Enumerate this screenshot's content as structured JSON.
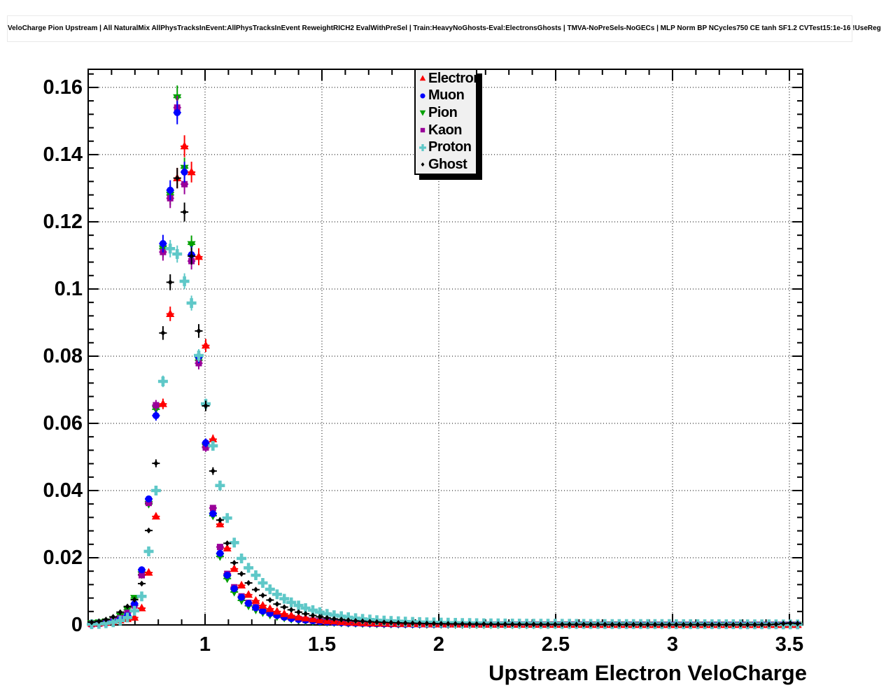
{
  "window": {
    "title_pave": "VeloCharge Pion Upstream | All NaturalMix AllPhysTracksInEvent:AllPhysTracksInEvent ReweightRICH2 EvalWithPreSel | Train:HeavyNoGhosts-Eval:ElectronsGhosts | TMVA-NoPreSels-NoGECs | MLP Norm BP NCycles750 CE tanh SF1.2 CVTest15:1e-16 !UseReg"
  },
  "legend": {
    "entries": [
      {
        "label": "Electron",
        "marker": "triangle-up",
        "color": "#ff0000"
      },
      {
        "label": "Muon",
        "marker": "circle",
        "color": "#0000ff"
      },
      {
        "label": "Pion",
        "marker": "triangle-down",
        "color": "#00a000"
      },
      {
        "label": "Kaon",
        "marker": "square",
        "color": "#990099"
      },
      {
        "label": "Proton",
        "marker": "cross",
        "color": "#5fc8c8"
      },
      {
        "label": "Ghost",
        "marker": "diamond",
        "color": "#000000"
      }
    ]
  },
  "chart_data": {
    "type": "scatter",
    "title": "VeloCharge Pion Upstream | All NaturalMix AllPhysTracksInEvent:AllPhysTracksInEvent ReweightRICH2 EvalWithPreSel | Train:HeavyNoGhosts-Eval:ElectronsGhosts | TMVA-NoPreSels-NoGECs | MLP Norm BP NCycles750 CE tanh SF1.2 CVTest15:1e-16 !UseReg",
    "xlabel": "Upstream Electron VeloCharge",
    "ylabel": "",
    "xlim": [
      0.5,
      3.557
    ],
    "ylim": [
      0,
      0.1654
    ],
    "grid": "dotted-major",
    "legend_position": "top-center",
    "x_major_ticks": [
      1,
      1.5,
      2,
      2.5,
      3,
      3.5
    ],
    "x_tick_labels": [
      "1",
      "1.5",
      "2",
      "2.5",
      "3",
      "3.5"
    ],
    "x_minor_step": 0.1,
    "y_major_ticks": [
      0,
      0.02,
      0.04,
      0.06,
      0.08,
      0.1,
      0.12,
      0.14,
      0.16
    ],
    "y_tick_labels": [
      "0",
      "0.02",
      "0.04",
      "0.06",
      "0.08",
      "0.1",
      "0.12",
      "0.14",
      "0.16"
    ],
    "y_minor_step": 0.004,
    "x": [
      0.515,
      0.546,
      0.576,
      0.607,
      0.637,
      0.668,
      0.698,
      0.729,
      0.759,
      0.79,
      0.82,
      0.851,
      0.881,
      0.912,
      0.942,
      0.973,
      1.003,
      1.034,
      1.064,
      1.095,
      1.125,
      1.156,
      1.186,
      1.217,
      1.247,
      1.278,
      1.308,
      1.339,
      1.369,
      1.4,
      1.43,
      1.461,
      1.491,
      1.522,
      1.552,
      1.583,
      1.613,
      1.644,
      1.674,
      1.705,
      1.735,
      1.766,
      1.796,
      1.827,
      1.857,
      1.888,
      1.918,
      1.949,
      1.979,
      2.01,
      2.04,
      2.071,
      2.101,
      2.132,
      2.162,
      2.193,
      2.223,
      2.254,
      2.284,
      2.315,
      2.345,
      2.376,
      2.406,
      2.437,
      2.467,
      2.498,
      2.528,
      2.559,
      2.589,
      2.62,
      2.65,
      2.681,
      2.711,
      2.742,
      2.772,
      2.803,
      2.833,
      2.864,
      2.894,
      2.925,
      2.955,
      2.986,
      3.016,
      3.047,
      3.077,
      3.108,
      3.138,
      3.169,
      3.199,
      3.23,
      3.26,
      3.291,
      3.321,
      3.352,
      3.382,
      3.413,
      3.443,
      3.474,
      3.504,
      3.535
    ],
    "series": [
      {
        "name": "Electron",
        "color": "#ff0000",
        "marker": "triangle-up",
        "values": [
          0.0004,
          0.0005,
          0.0007,
          0.001,
          0.0014,
          0.0018,
          0.0022,
          0.005,
          0.0156,
          0.0323,
          0.0658,
          0.0926,
          0.133,
          0.1425,
          0.1348,
          0.1096,
          0.0832,
          0.0553,
          0.03,
          0.0228,
          0.0167,
          0.0118,
          0.009,
          0.0072,
          0.0058,
          0.0048,
          0.004,
          0.0033,
          0.0028,
          0.0023,
          0.002,
          0.0017,
          0.0014,
          0.0012,
          0.0011,
          0.0009,
          0.0008,
          0.0007,
          0.0006,
          0.00055,
          0.0005,
          0.00045,
          0.0004,
          0.00038,
          0.00035,
          0.00032,
          0.0003,
          0.00028,
          0.00026,
          0.00024,
          0.00022,
          0.0002,
          0.0002,
          0.00019,
          0.00018,
          0.00017,
          0.00016,
          0.00015,
          0.00015,
          0.00014,
          0.00013,
          0.00013,
          0.00012,
          0.00012,
          0.00011,
          0.00011,
          0.0001,
          0.0001,
          0.0001,
          9e-05,
          9e-05,
          9e-05,
          8e-05,
          8e-05,
          8e-05,
          8e-05,
          7e-05,
          7e-05,
          7e-05,
          7e-05,
          6e-05,
          6e-05,
          6e-05,
          6e-05,
          6e-05,
          5e-05,
          5e-05,
          5e-05,
          5e-05,
          5e-05,
          5e-05,
          4e-05,
          4e-05,
          4e-05,
          4e-05,
          4e-05,
          4e-05,
          4e-05,
          4e-05,
          4e-05
        ]
      },
      {
        "name": "Muon",
        "color": "#0000ff",
        "marker": "circle",
        "values": [
          0.0002,
          0.0003,
          0.0005,
          0.0009,
          0.0016,
          0.0028,
          0.0063,
          0.0164,
          0.0375,
          0.0623,
          0.1135,
          0.1294,
          0.1525,
          0.1348,
          0.1102,
          0.0798,
          0.0542,
          0.0331,
          0.0213,
          0.0148,
          0.0108,
          0.0082,
          0.0064,
          0.0051,
          0.0041,
          0.0034,
          0.0028,
          0.0023,
          0.0019,
          0.0016,
          0.0014,
          0.0012,
          0.001,
          0.00085,
          0.00075,
          0.00065,
          0.00055,
          0.0005,
          0.00045,
          0.0004,
          0.00035,
          0.0003,
          0.00028,
          0.00025,
          0.00023,
          0.00021,
          0.0002,
          0.00018,
          0.00017,
          0.00016,
          0.00015,
          0.00014,
          0.00013,
          0.00012,
          0.00012,
          0.00011,
          0.0001,
          0.0001,
          9e-05,
          9e-05,
          8e-05,
          8e-05,
          8e-05,
          7e-05,
          7e-05,
          7e-05,
          6e-05,
          6e-05,
          6e-05,
          6e-05,
          5e-05,
          5e-05,
          5e-05,
          5e-05,
          5e-05,
          5e-05,
          4e-05,
          4e-05,
          4e-05,
          4e-05,
          4e-05,
          4e-05,
          4e-05,
          4e-05,
          3e-05,
          3e-05,
          3e-05,
          3e-05,
          3e-05,
          3e-05,
          3e-05,
          3e-05,
          3e-05,
          3e-05,
          3e-05,
          3e-05,
          3e-05,
          3e-05,
          3e-05,
          3e-05
        ]
      },
      {
        "name": "Pion",
        "color": "#00a000",
        "marker": "triangle-down",
        "values": [
          0.0005,
          0.0007,
          0.001,
          0.0016,
          0.0026,
          0.0045,
          0.008,
          0.015,
          0.036,
          0.0642,
          0.112,
          0.128,
          0.157,
          0.136,
          0.1133,
          0.0788,
          0.053,
          0.0325,
          0.0204,
          0.0138,
          0.0098,
          0.0073,
          0.0057,
          0.0045,
          0.0037,
          0.003,
          0.0025,
          0.0021,
          0.0017,
          0.0015,
          0.0012,
          0.001,
          0.0009,
          0.0008,
          0.0007,
          0.0006,
          0.00052,
          0.00046,
          0.0004,
          0.00036,
          0.00032,
          0.00028,
          0.00025,
          0.00023,
          0.00021,
          0.00019,
          0.00017,
          0.00016,
          0.00015,
          0.00014,
          0.00013,
          0.00012,
          0.00011,
          0.0001,
          0.0001,
          9e-05,
          9e-05,
          8e-05,
          8e-05,
          7e-05,
          7e-05,
          7e-05,
          6e-05,
          6e-05,
          6e-05,
          6e-05,
          5e-05,
          5e-05,
          5e-05,
          5e-05,
          5e-05,
          4e-05,
          4e-05,
          4e-05,
          4e-05,
          4e-05,
          4e-05,
          4e-05,
          3e-05,
          3e-05,
          3e-05,
          3e-05,
          3e-05,
          3e-05,
          3e-05,
          3e-05,
          3e-05,
          3e-05,
          3e-05,
          3e-05,
          3e-05,
          3e-05,
          3e-05,
          3e-05,
          3e-05,
          3e-05,
          3e-05,
          3e-05,
          3e-05,
          3e-05
        ]
      },
      {
        "name": "Kaon",
        "color": "#990099",
        "marker": "square",
        "values": [
          0.0002,
          0.0004,
          0.0007,
          0.0012,
          0.002,
          0.0036,
          0.0058,
          0.0148,
          0.0363,
          0.0654,
          0.111,
          0.127,
          0.154,
          0.1312,
          0.1083,
          0.0779,
          0.0528,
          0.0348,
          0.0232,
          0.0152,
          0.0112,
          0.0085,
          0.0066,
          0.0053,
          0.0043,
          0.0036,
          0.003,
          0.0025,
          0.0021,
          0.0018,
          0.0015,
          0.0013,
          0.0011,
          0.00095,
          0.00082,
          0.00072,
          0.00063,
          0.00055,
          0.00048,
          0.00043,
          0.00038,
          0.00034,
          0.0003,
          0.00027,
          0.00025,
          0.00022,
          0.0002,
          0.00019,
          0.00017,
          0.00016,
          0.00015,
          0.00014,
          0.00013,
          0.00012,
          0.00011,
          0.00011,
          0.0001,
          0.0001,
          9e-05,
          9e-05,
          8e-05,
          8e-05,
          8e-05,
          7e-05,
          7e-05,
          7e-05,
          6e-05,
          6e-05,
          6e-05,
          6e-05,
          5e-05,
          5e-05,
          5e-05,
          5e-05,
          5e-05,
          5e-05,
          5e-05,
          5e-05,
          5e-05,
          5e-05,
          5e-05,
          5e-05,
          4e-05,
          4e-05,
          4e-05,
          4e-05,
          4e-05,
          4e-05,
          4e-05,
          4e-05,
          4e-05,
          4e-05,
          4e-05,
          4e-05,
          4e-05,
          4e-05,
          4e-05,
          4e-05,
          4e-05,
          4e-05
        ]
      },
      {
        "name": "Proton",
        "color": "#5fc8c8",
        "marker": "cross",
        "values": [
          0.0002,
          0.0003,
          0.0005,
          0.0008,
          0.0013,
          0.0022,
          0.0042,
          0.0085,
          0.0219,
          0.04,
          0.0725,
          0.112,
          0.1104,
          0.1023,
          0.0958,
          0.0802,
          0.0658,
          0.0533,
          0.0415,
          0.0318,
          0.0245,
          0.0198,
          0.017,
          0.0148,
          0.0125,
          0.0106,
          0.0091,
          0.0078,
          0.0067,
          0.0058,
          0.005,
          0.0044,
          0.0038,
          0.0033,
          0.0029,
          0.0026,
          0.0023,
          0.002,
          0.0018,
          0.0016,
          0.0014,
          0.0013,
          0.0012,
          0.0011,
          0.001,
          0.00092,
          0.00085,
          0.0008,
          0.00075,
          0.0007,
          0.00066,
          0.00062,
          0.00059,
          0.00056,
          0.00053,
          0.0005,
          0.00048,
          0.00046,
          0.00044,
          0.00042,
          0.0004,
          0.00039,
          0.00038,
          0.00037,
          0.00036,
          0.00035,
          0.00034,
          0.00033,
          0.00032,
          0.00031,
          0.0003,
          0.00029,
          0.00028,
          0.00028,
          0.00027,
          0.00027,
          0.00026,
          0.00026,
          0.00025,
          0.00025,
          0.00024,
          0.00024,
          0.00023,
          0.00023,
          0.00022,
          0.00022,
          0.00021,
          0.00021,
          0.0002,
          0.0002,
          0.0002,
          0.00019,
          0.00019,
          0.00019,
          0.00018,
          0.00018,
          0.00018,
          0.00017,
          0.00017,
          0.00017
        ]
      },
      {
        "name": "Ghost",
        "color": "#000000",
        "marker": "diamond",
        "values": [
          0.0008,
          0.0011,
          0.0016,
          0.0024,
          0.0038,
          0.0055,
          0.0075,
          0.0123,
          0.0281,
          0.0481,
          0.0869,
          0.102,
          0.133,
          0.1229,
          0.1098,
          0.0875,
          0.0652,
          0.0458,
          0.0312,
          0.0243,
          0.0185,
          0.0152,
          0.0125,
          0.0105,
          0.0088,
          0.0074,
          0.0062,
          0.0053,
          0.0045,
          0.0038,
          0.0033,
          0.0028,
          0.0024,
          0.0021,
          0.0018,
          0.0016,
          0.0014,
          0.0012,
          0.0011,
          0.00095,
          0.00085,
          0.00076,
          0.00068,
          0.00061,
          0.00055,
          0.0005,
          0.00046,
          0.00042,
          0.00039,
          0.00036,
          0.00033,
          0.00031,
          0.00029,
          0.00027,
          0.00025,
          0.00024,
          0.00022,
          0.00021,
          0.0002,
          0.00019,
          0.00018,
          0.00017,
          0.00016,
          0.00016,
          0.00015,
          0.00015,
          0.00014,
          0.00014,
          0.00013,
          0.00013,
          0.00012,
          0.00012,
          0.00012,
          0.00011,
          0.00011,
          0.00011,
          0.0001,
          0.0001,
          0.0001,
          0.0001,
          9e-05,
          9e-05,
          9e-05,
          9e-05,
          9e-05,
          8e-05,
          8e-05,
          8e-05,
          8e-05,
          8e-05,
          8e-05,
          8e-05,
          8e-05,
          8e-05,
          9e-05,
          0.0001,
          0.0002,
          0.0004,
          0.0005,
          0.0004
        ]
      }
    ]
  }
}
